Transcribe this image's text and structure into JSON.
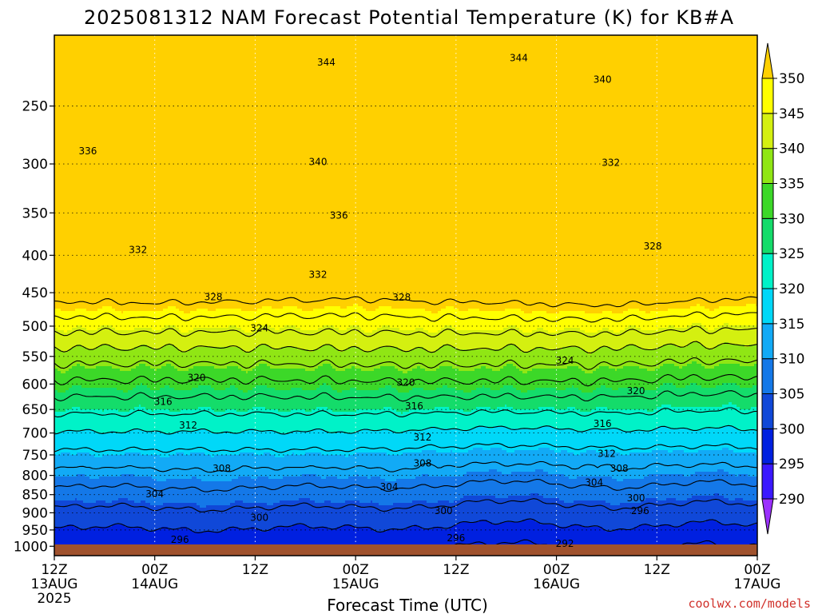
{
  "chart_data": {
    "type": "heatmap",
    "title": "2025081312 NAM Forecast Potential Temperature (K) for KB#A",
    "xlabel": "Forecast Time (UTC)",
    "ylabel": "",
    "x_ticks": [
      {
        "hours": 0,
        "line1": "12Z",
        "line2": "13AUG",
        "line3": "2025"
      },
      {
        "hours": 12,
        "line1": "00Z",
        "line2": "14AUG",
        "line3": ""
      },
      {
        "hours": 24,
        "line1": "12Z",
        "line2": "",
        "line3": ""
      },
      {
        "hours": 36,
        "line1": "00Z",
        "line2": "15AUG",
        "line3": ""
      },
      {
        "hours": 48,
        "line1": "12Z",
        "line2": "",
        "line3": ""
      },
      {
        "hours": 60,
        "line1": "00Z",
        "line2": "16AUG",
        "line3": ""
      },
      {
        "hours": 72,
        "line1": "12Z",
        "line2": "",
        "line3": ""
      },
      {
        "hours": 84,
        "line1": "00Z",
        "line2": "17AUG",
        "line3": ""
      }
    ],
    "xlim_hours": [
      0,
      84
    ],
    "y_ticks": [
      "250",
      "300",
      "350",
      "400",
      "450",
      "500",
      "550",
      "600",
      "650",
      "700",
      "750",
      "800",
      "850",
      "900",
      "950",
      "1000"
    ],
    "ylim_hpa": [
      200,
      1030
    ],
    "y_scale": "log-pressure",
    "grid": true,
    "colorbar": {
      "labels": [
        "290",
        "295",
        "300",
        "305",
        "310",
        "315",
        "320",
        "325",
        "330",
        "335",
        "340",
        "345",
        "350"
      ],
      "colors": [
        "#9b30ff",
        "#3a18ff",
        "#0020e0",
        "#1048d8",
        "#1478e8",
        "#12aaf6",
        "#00d8f8",
        "#00f2c8",
        "#14dc6a",
        "#3cd828",
        "#90e614",
        "#d4f010",
        "#ffff00",
        "#ffd000"
      ]
    },
    "contour_interval": 4,
    "contour_labels": [
      {
        "text": "344",
        "hours": 32.5,
        "hpa": 218
      },
      {
        "text": "344",
        "hours": 55.5,
        "hpa": 215
      },
      {
        "text": "340",
        "hours": 65.5,
        "hpa": 230
      },
      {
        "text": "336",
        "hours": 4.0,
        "hpa": 288
      },
      {
        "text": "340",
        "hours": 31.5,
        "hpa": 298
      },
      {
        "text": "332",
        "hours": 66.5,
        "hpa": 299
      },
      {
        "text": "336",
        "hours": 34.0,
        "hpa": 353
      },
      {
        "text": "332",
        "hours": 10.0,
        "hpa": 393
      },
      {
        "text": "328",
        "hours": 71.5,
        "hpa": 389
      },
      {
        "text": "332",
        "hours": 31.5,
        "hpa": 425
      },
      {
        "text": "328",
        "hours": 19.0,
        "hpa": 456
      },
      {
        "text": "328",
        "hours": 41.5,
        "hpa": 457
      },
      {
        "text": "324",
        "hours": 24.5,
        "hpa": 503
      },
      {
        "text": "324",
        "hours": 61.0,
        "hpa": 557
      },
      {
        "text": "320",
        "hours": 17.0,
        "hpa": 588
      },
      {
        "text": "320",
        "hours": 42.0,
        "hpa": 597
      },
      {
        "text": "320",
        "hours": 69.5,
        "hpa": 613
      },
      {
        "text": "316",
        "hours": 13.0,
        "hpa": 634
      },
      {
        "text": "316",
        "hours": 43.0,
        "hpa": 643
      },
      {
        "text": "316",
        "hours": 65.5,
        "hpa": 680
      },
      {
        "text": "312",
        "hours": 16.0,
        "hpa": 683
      },
      {
        "text": "312",
        "hours": 44.0,
        "hpa": 710
      },
      {
        "text": "312",
        "hours": 66.0,
        "hpa": 747
      },
      {
        "text": "308",
        "hours": 20.0,
        "hpa": 783
      },
      {
        "text": "308",
        "hours": 44.0,
        "hpa": 770
      },
      {
        "text": "308",
        "hours": 67.5,
        "hpa": 783
      },
      {
        "text": "304",
        "hours": 12.0,
        "hpa": 848
      },
      {
        "text": "304",
        "hours": 40.0,
        "hpa": 829
      },
      {
        "text": "304",
        "hours": 64.5,
        "hpa": 818
      },
      {
        "text": "300",
        "hours": 24.5,
        "hpa": 914
      },
      {
        "text": "300",
        "hours": 46.5,
        "hpa": 895
      },
      {
        "text": "300",
        "hours": 69.5,
        "hpa": 859
      },
      {
        "text": "296",
        "hours": 70.0,
        "hpa": 895
      },
      {
        "text": "296",
        "hours": 15.0,
        "hpa": 980
      },
      {
        "text": "296",
        "hours": 48.0,
        "hpa": 975
      },
      {
        "text": "292",
        "hours": 61.0,
        "hpa": 992
      }
    ]
  },
  "credit": "coolwx.com/models",
  "colors": {
    "ground": "#a0522d",
    "contour": "#000000",
    "axis": "#000000",
    "grid": "#000000"
  }
}
